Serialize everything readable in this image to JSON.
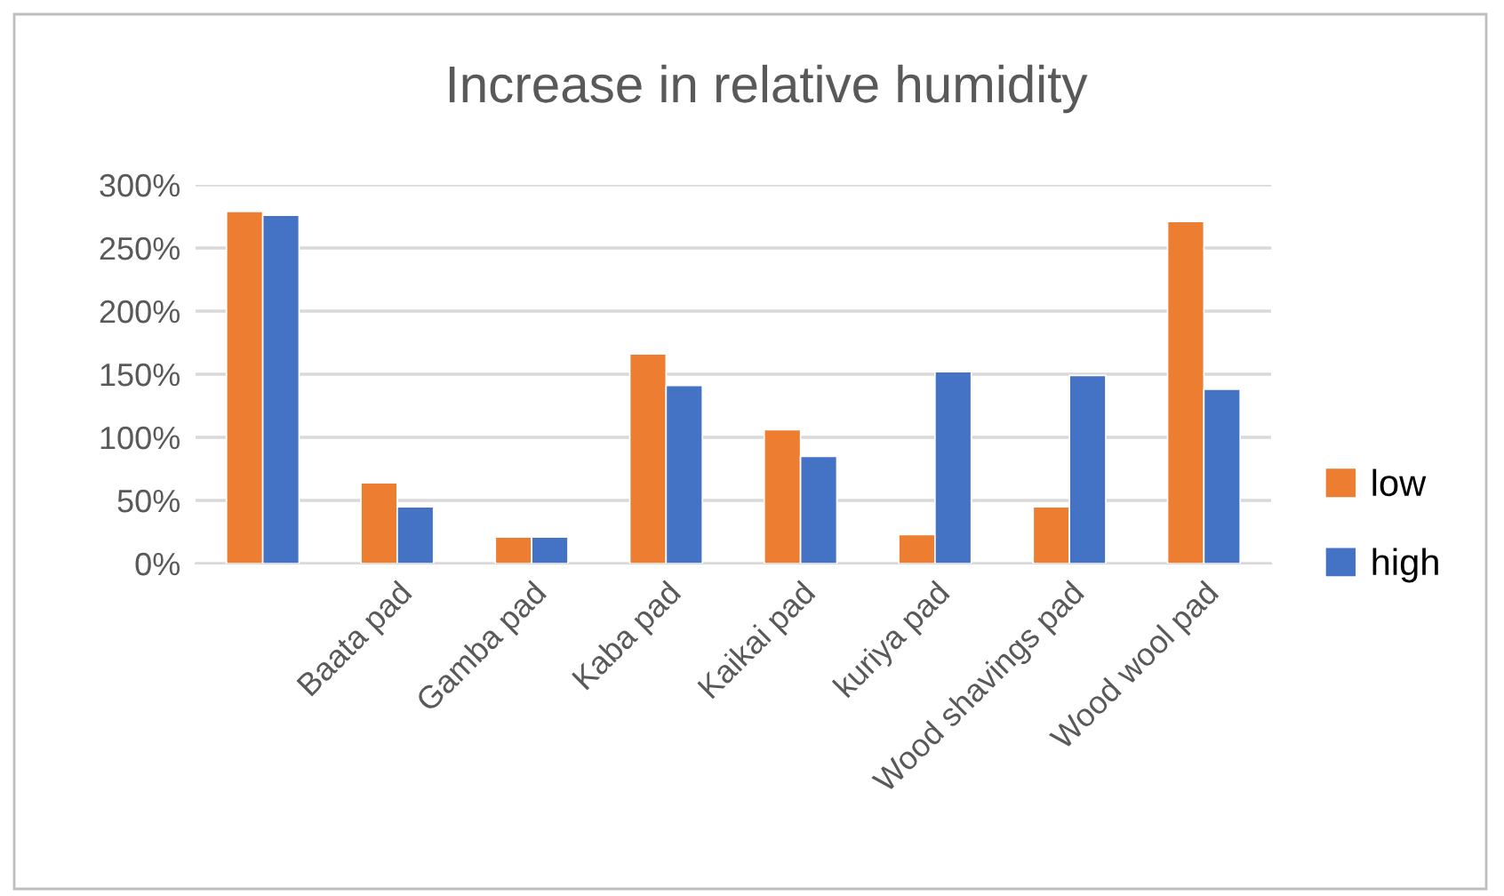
{
  "chart_data": {
    "type": "bar",
    "title": "Increase in relative humidity",
    "categories": [
      null,
      "Baata pad",
      "Gamba pad",
      "Kaba pad",
      "Kaikai pad",
      "kuriya pad",
      "Wood shavings pad",
      "Wood wool pad"
    ],
    "series": [
      {
        "name": "low",
        "color": "#ed7d31",
        "values": [
          279,
          64,
          21,
          166,
          106,
          23,
          45,
          271
        ]
      },
      {
        "name": "high",
        "color": "#4472c4",
        "values": [
          276,
          45,
          21,
          141,
          85,
          152,
          149,
          138
        ]
      }
    ],
    "ylim": [
      0,
      300
    ],
    "yticks": [
      {
        "value": 0,
        "label": "0%"
      },
      {
        "value": 50,
        "label": "50%"
      },
      {
        "value": 100,
        "label": "100%"
      },
      {
        "value": 150,
        "label": "150%"
      },
      {
        "value": 200,
        "label": "200%"
      },
      {
        "value": 250,
        "label": "250%"
      },
      {
        "value": 300,
        "label": "300%"
      }
    ],
    "grid": "y",
    "legend": "right"
  }
}
